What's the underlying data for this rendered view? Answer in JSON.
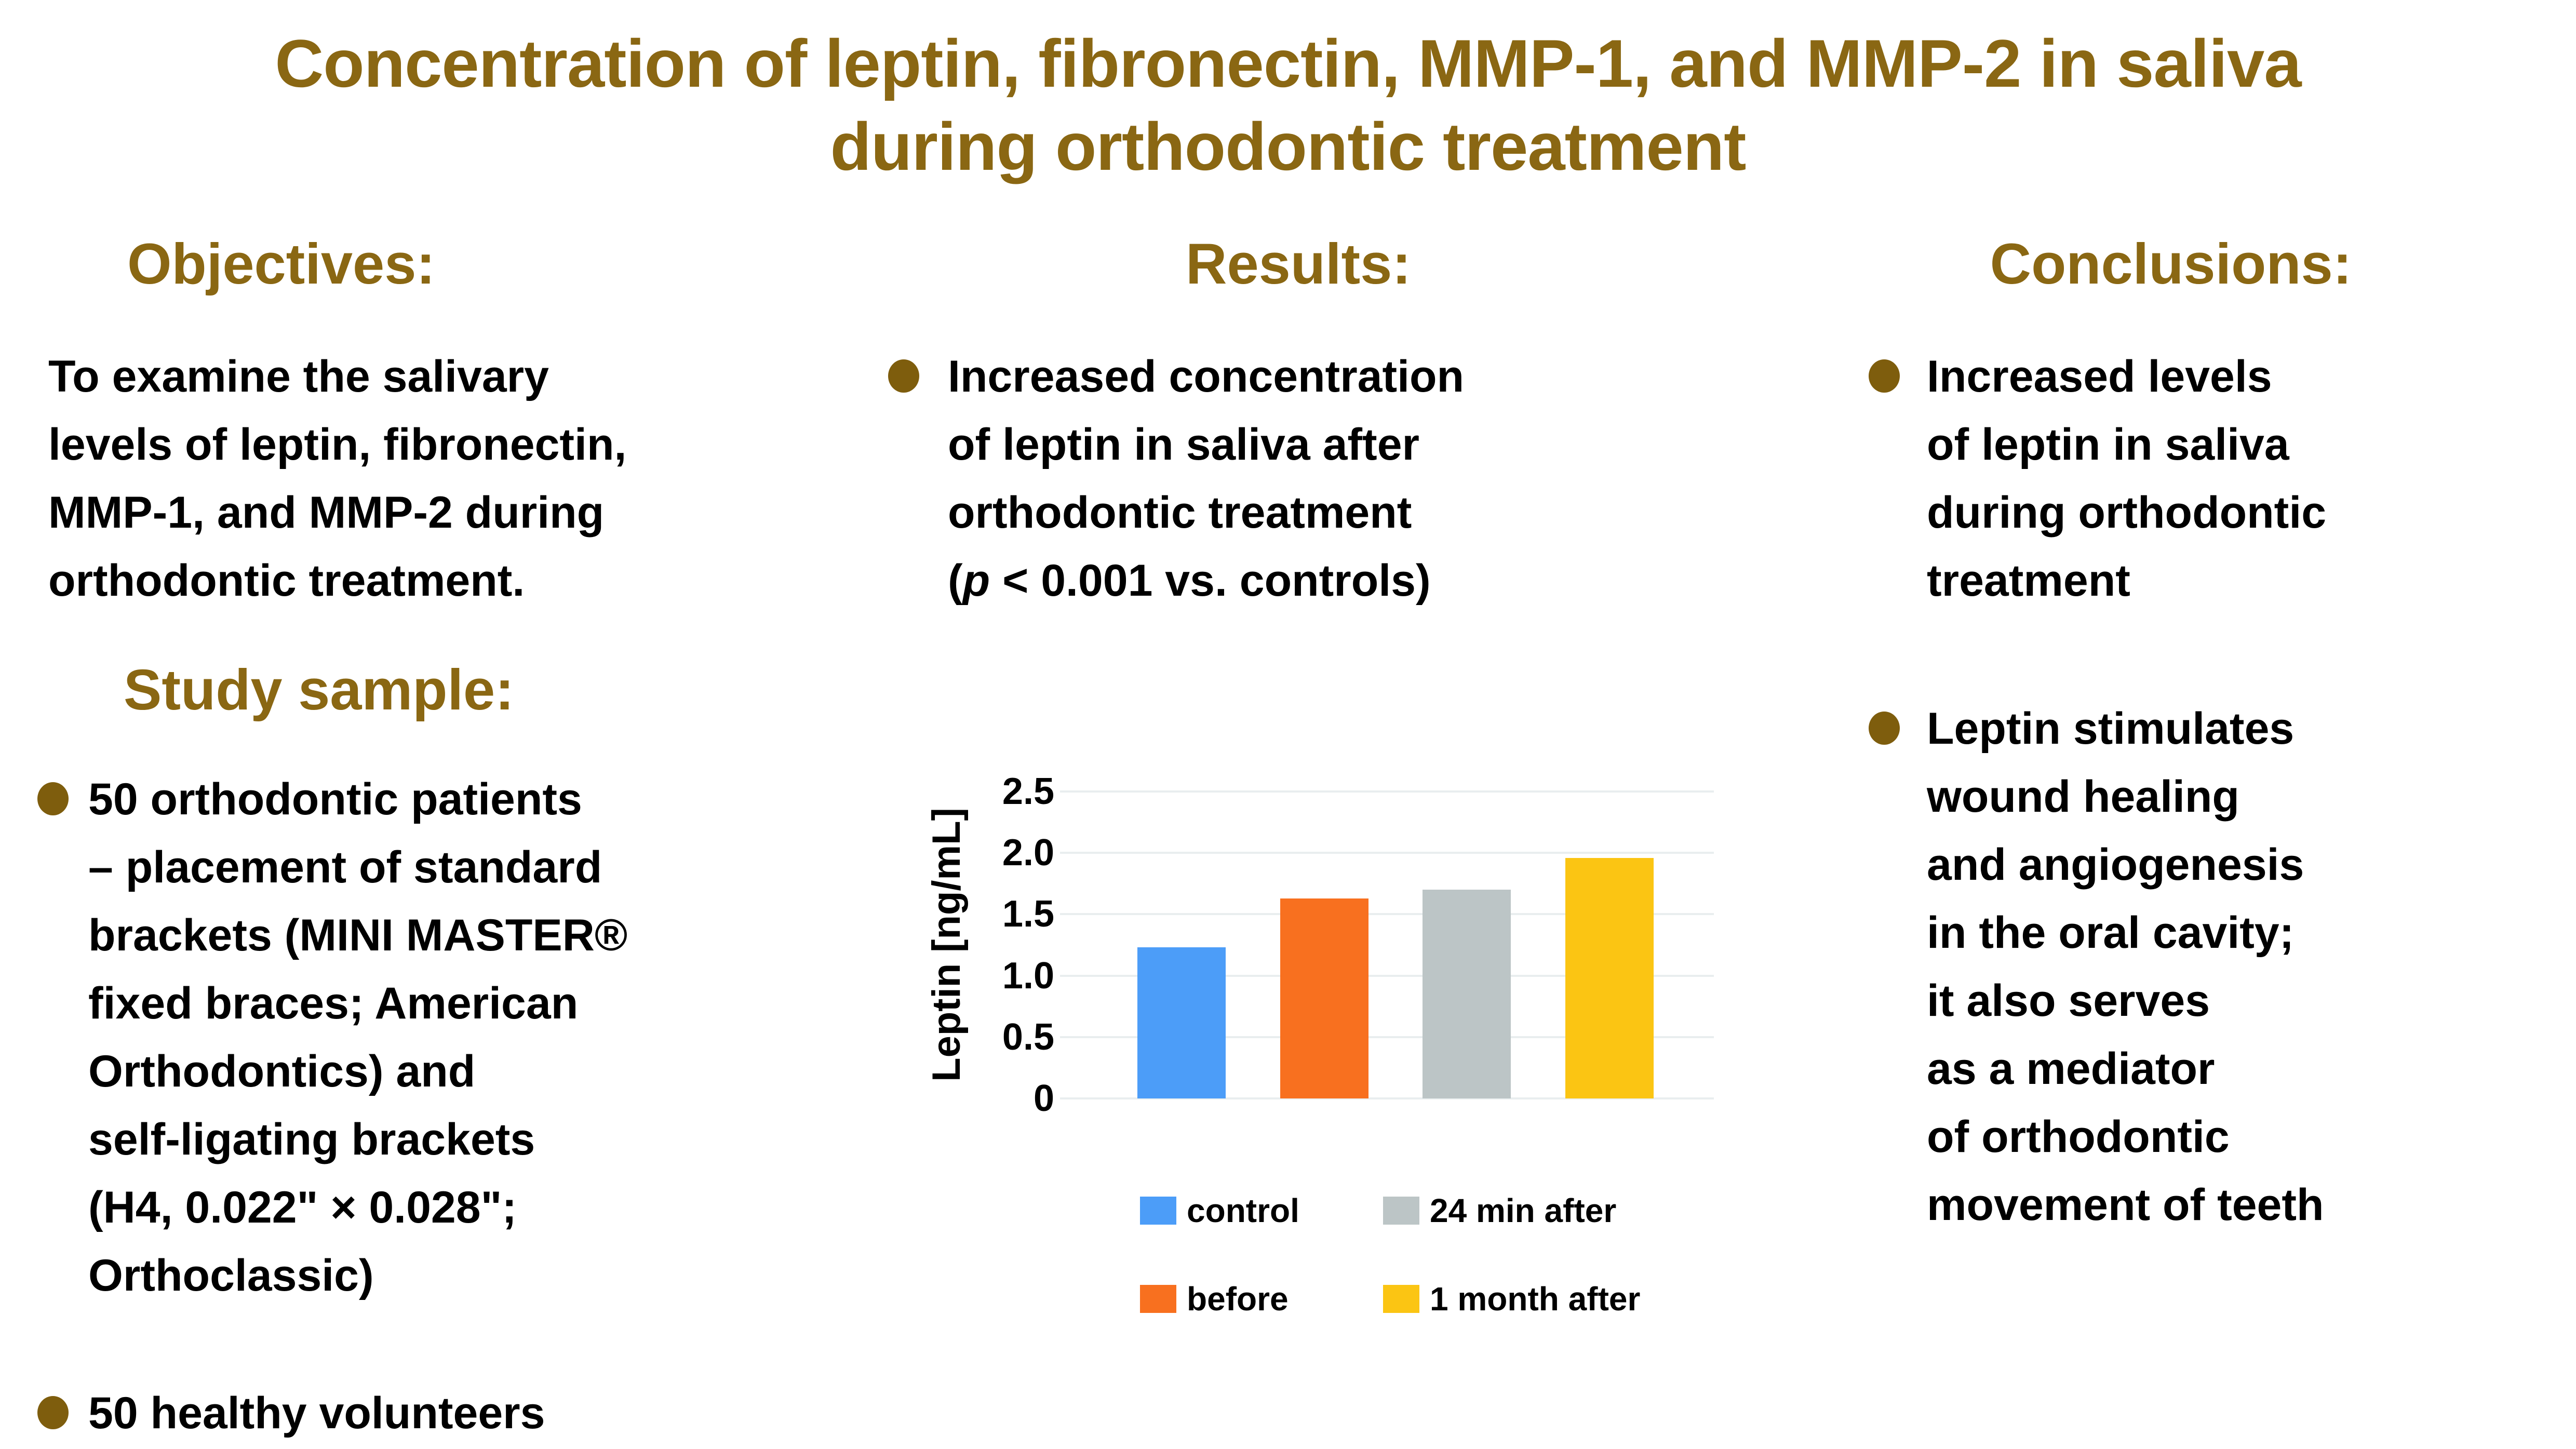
{
  "page": {
    "background": "#FFFFFF",
    "accent_gold": "#8A6713",
    "bullet_color": "#7E5D0D",
    "text_color": "#000000",
    "icons": {
      "bullet": "filled-circle-bullet"
    }
  },
  "title": {
    "line1": "Concentration of leptin, fibronectin, MMP-1, and MMP-2 in saliva",
    "line2": "during orthodontic treatment"
  },
  "columns": {
    "objectives": {
      "heading": "Objectives:",
      "paragraph": "To examine the salivary\nlevels of leptin, fibronectin,\nMMP-1, and MMP-2 during\northodontic treatment."
    },
    "study_sample": {
      "heading": "Study sample:",
      "bullet1": "50 orthodontic patients\n– placement of standard\nbrackets (MINI MASTER®\nfixed braces; American\nOrthodontics) and\nself-ligating brackets\n(H4, 0.022\" × 0.028\";\nOrthoclassic)",
      "bullet2": "50 healthy volunteers"
    },
    "results": {
      "heading": "Results:",
      "bullet": {
        "before_p": "Increased concentration\nof leptin in saliva after\northodontic treatment\n(",
        "p": "p",
        "after_p": " < 0.001 vs. controls)"
      }
    },
    "conclusions": {
      "heading": "Conclusions:",
      "bullet1": "Increased levels\nof leptin in saliva\nduring orthodontic\ntreatment",
      "bullet2": "Leptin stimulates\nwound healing\nand angiogenesis\nin the oral cavity;\nit also serves\nas a mediator\nof orthodontic\nmovement of teeth"
    }
  },
  "chart_data": {
    "type": "bar",
    "title": "",
    "xlabel": "",
    "ylabel": "Leptin [ng/mL]",
    "categories": [
      "control",
      "before",
      "24 min after",
      "1 month after"
    ],
    "values": [
      1.23,
      1.63,
      1.7,
      1.96
    ],
    "colors": [
      "#4C9DF8",
      "#F8701F",
      "#BCC5C6",
      "#FBC513"
    ],
    "ylim": [
      0,
      2.5
    ],
    "yticks": [
      0,
      0.5,
      1.0,
      1.5,
      2.0,
      2.5
    ],
    "ytick_labels": [
      "0",
      "0.5",
      "1.0",
      "1.5",
      "2.0",
      "2.5"
    ],
    "grid": true,
    "gridline_color": "#E9EEEF",
    "legend_position": "bottom",
    "legend_rows": [
      [
        "control",
        "24 min after"
      ],
      [
        "before",
        "1 month after"
      ]
    ]
  }
}
